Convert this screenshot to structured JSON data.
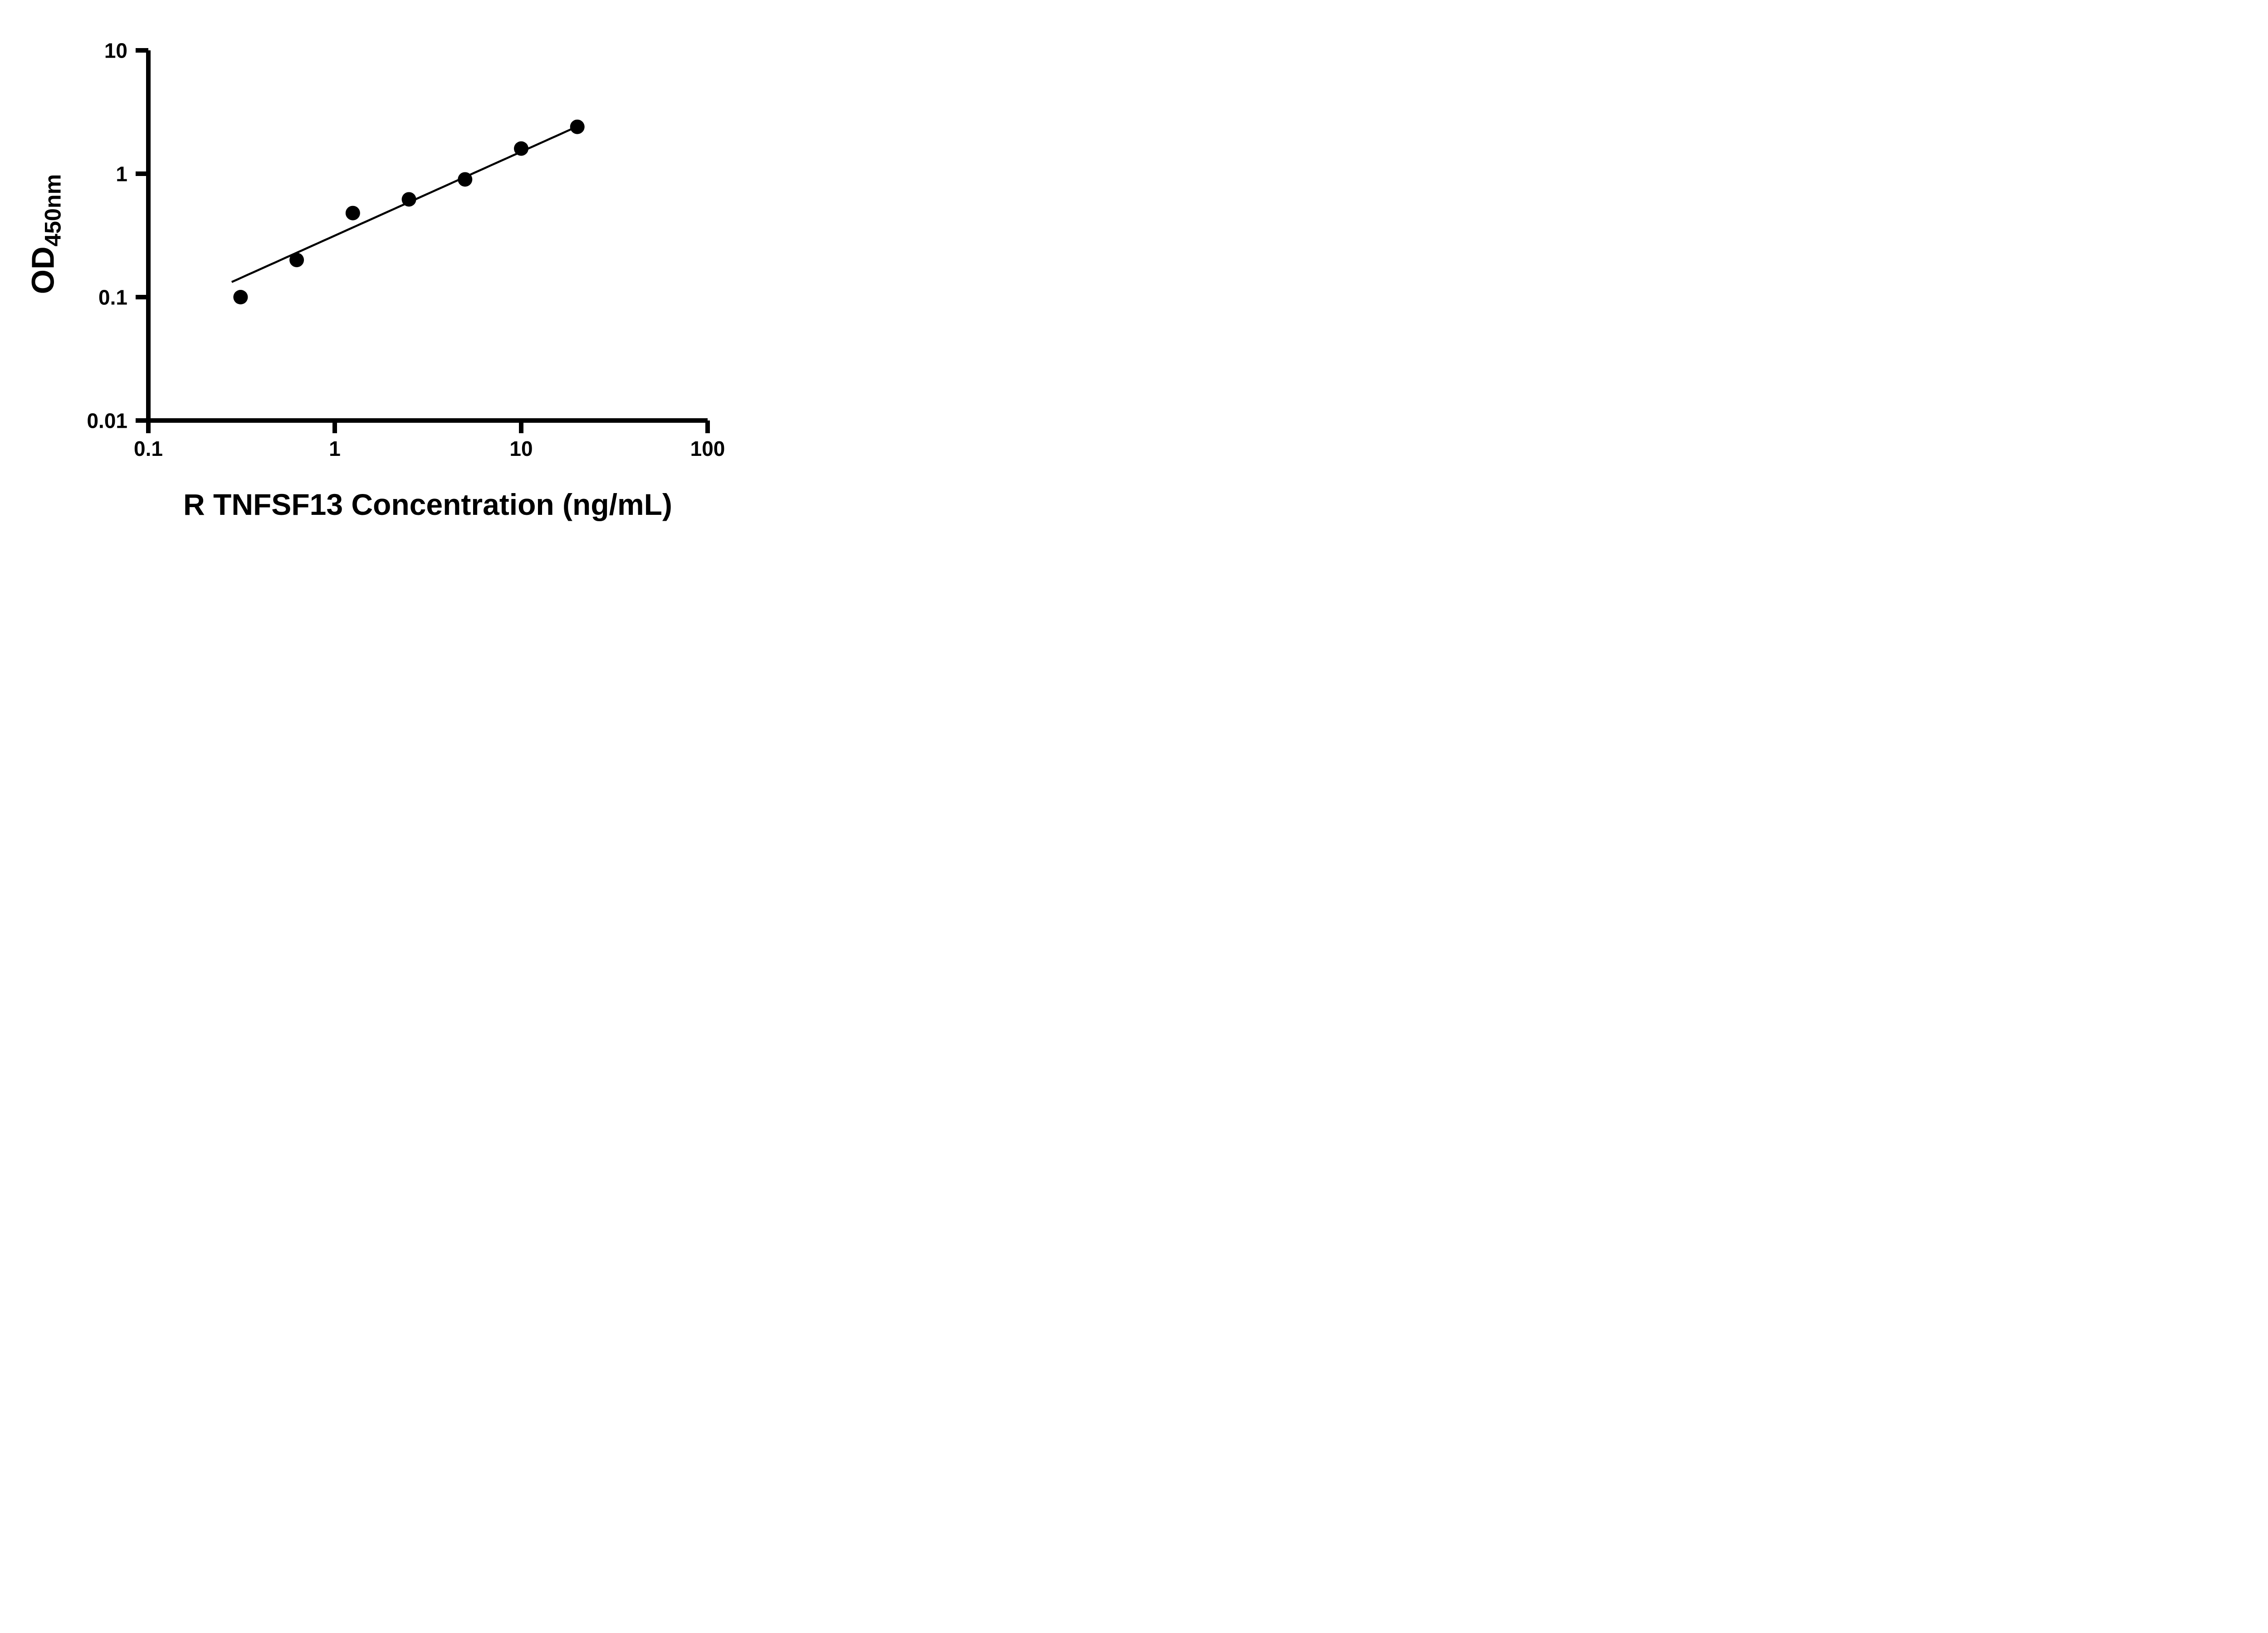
{
  "chart_data": {
    "type": "scatter",
    "title": "",
    "xlabel": "R TNFSF13 Concentration (ng/mL)",
    "ylabel_main": "OD",
    "ylabel_sub": "450nm",
    "x_scale": "log",
    "y_scale": "log",
    "xlim": [
      0.1,
      100
    ],
    "ylim": [
      0.01,
      10
    ],
    "x_ticks": [
      0.1,
      1,
      10,
      100
    ],
    "x_tick_labels": [
      "0.1",
      "1",
      "10",
      "100"
    ],
    "y_ticks": [
      0.01,
      0.1,
      1,
      10
    ],
    "y_tick_labels": [
      "0.01",
      "0.1",
      "1",
      "10"
    ],
    "grid": false,
    "legend": "none",
    "series": [
      {
        "x": [
          0.3125,
          0.625,
          1.25,
          2.5,
          5,
          10,
          20
        ],
        "y": [
          0.1,
          0.2,
          0.48,
          0.62,
          0.9,
          1.6,
          2.4
        ]
      }
    ],
    "fit_line": {
      "model": "power",
      "a": 0.315,
      "b": 0.68,
      "x_start": 0.28,
      "x_end": 20
    },
    "marker": {
      "shape": "circle",
      "color": "#000000",
      "radius_px": 16
    },
    "line_color": "#000000",
    "axis_color": "#000000"
  }
}
